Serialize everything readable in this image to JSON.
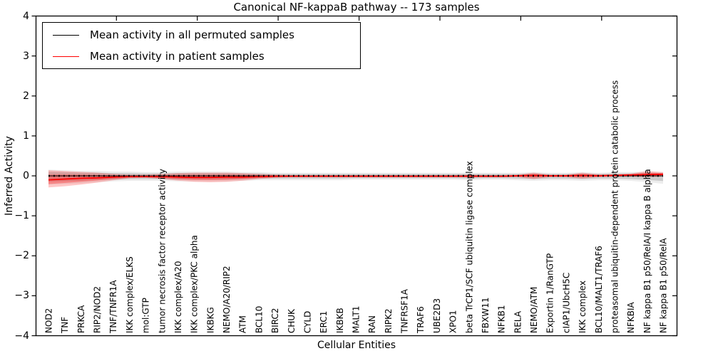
{
  "chart_data": {
    "type": "line",
    "title": "Canonical NF-kappaB pathway -- 173 samples",
    "xlabel": "Cellular Entities",
    "ylabel": "Inferred Activity",
    "ylim": [
      -4,
      4
    ],
    "ytick_labels": [
      "4",
      "3",
      "2",
      "1",
      "0",
      "−1",
      "−2",
      "−3",
      "−4"
    ],
    "grid": false,
    "legend_position": "upper left",
    "colors": {
      "permuted_line": "#000000",
      "patient_line": "#ff0000",
      "permuted_band": "#999999",
      "patient_band": "#ff0000"
    },
    "categories": [
      "NOD2",
      "TNF",
      "PRKCA",
      "RIP2/NOD2",
      "TNF/TNFR1A",
      "IKK complex/ELKS",
      "mol:GTP",
      "tumor necrosis factor receptor activity",
      "IKK complex/A20",
      "IKK complex/PKC alpha",
      "IKBKG",
      "NEMO/A20/RIP2",
      "ATM",
      "BCL10",
      "BIRC2",
      "CHUK",
      "CYLD",
      "ERC1",
      "IKBKB",
      "MALT1",
      "RAN",
      "RIPK2",
      "TNFRSF1A",
      "TRAF6",
      "UBE2D3",
      "XPO1",
      "beta TrCP1/SCF ubiquitin ligase complex",
      "FBXW11",
      "NFKB1",
      "RELA",
      "NEMO/ATM",
      "Exportin 1/RanGTP",
      "cIAP1/UbcH5C",
      "IKK complex",
      "BCL10/MALT1/TRAF6",
      "proteasomal ubiquitin-dependent protein catabolic process",
      "NFKBIA",
      "NF kappa B1 p50/RelA/I kappa B alpha",
      "NF kappa B1 p50/RelA"
    ],
    "series": [
      {
        "name": "Mean activity in all permuted samples",
        "color": "#000000",
        "values": [
          0,
          0,
          0,
          0,
          0,
          0,
          0,
          0,
          0,
          0,
          0,
          0,
          0,
          0,
          0,
          0,
          0,
          0,
          0,
          0,
          0,
          0,
          0,
          0,
          0,
          0,
          0,
          0,
          0,
          0,
          0,
          0,
          0,
          0,
          0,
          0,
          0,
          0,
          0
        ]
      },
      {
        "name": "Mean activity in patient samples",
        "color": "#ff0000",
        "values": [
          -0.1,
          -0.08,
          -0.06,
          -0.05,
          -0.03,
          -0.02,
          -0.02,
          -0.02,
          -0.03,
          -0.04,
          -0.04,
          -0.03,
          -0.03,
          -0.02,
          -0.01,
          -0.01,
          -0.01,
          -0.01,
          -0.01,
          -0.01,
          -0.01,
          -0.01,
          -0.01,
          -0.01,
          -0.01,
          -0.01,
          -0.01,
          -0.01,
          -0.01,
          0.0,
          0.01,
          0.0,
          0.0,
          0.01,
          0.0,
          0.01,
          0.02,
          0.03,
          0.04
        ]
      }
    ],
    "bands": [
      {
        "name": "permuted samples spread",
        "color": "#000000",
        "opacity": 0.14,
        "upper": [
          0.1,
          0.09,
          0.08,
          0.08,
          0.07,
          0.07,
          0.06,
          0.06,
          0.07,
          0.07,
          0.07,
          0.07,
          0.06,
          0.06,
          0.05,
          0.05,
          0.05,
          0.05,
          0.05,
          0.05,
          0.05,
          0.05,
          0.05,
          0.05,
          0.05,
          0.05,
          0.05,
          0.05,
          0.05,
          0.05,
          0.06,
          0.05,
          0.05,
          0.06,
          0.05,
          0.06,
          0.06,
          0.07,
          0.06
        ],
        "lower": [
          -0.14,
          -0.13,
          -0.12,
          -0.1,
          -0.09,
          -0.08,
          -0.08,
          -0.08,
          -0.09,
          -0.09,
          -0.09,
          -0.09,
          -0.08,
          -0.07,
          -0.07,
          -0.07,
          -0.07,
          -0.07,
          -0.07,
          -0.06,
          -0.06,
          -0.06,
          -0.06,
          -0.06,
          -0.06,
          -0.06,
          -0.07,
          -0.06,
          -0.06,
          -0.07,
          -0.08,
          -0.07,
          -0.07,
          -0.08,
          -0.07,
          -0.07,
          -0.08,
          -0.1,
          -0.13
        ]
      },
      {
        "name": "patient samples spread",
        "color": "#ff0000",
        "opacity": 0.22,
        "upper": [
          0.14,
          0.12,
          0.1,
          0.08,
          0.05,
          0.03,
          0.03,
          0.05,
          0.07,
          0.08,
          0.08,
          0.08,
          0.07,
          0.05,
          0.03,
          0.02,
          0.02,
          0.02,
          0.02,
          0.02,
          0.02,
          0.02,
          0.02,
          0.02,
          0.02,
          0.02,
          0.03,
          0.02,
          0.02,
          0.03,
          0.08,
          0.03,
          0.03,
          0.08,
          0.04,
          0.04,
          0.06,
          0.12,
          0.09
        ],
        "lower": [
          -0.29,
          -0.26,
          -0.22,
          -0.17,
          -0.11,
          -0.06,
          -0.05,
          -0.08,
          -0.12,
          -0.15,
          -0.16,
          -0.15,
          -0.12,
          -0.08,
          -0.05,
          -0.03,
          -0.03,
          -0.03,
          -0.03,
          -0.03,
          -0.03,
          -0.03,
          -0.03,
          -0.03,
          -0.03,
          -0.03,
          -0.03,
          -0.03,
          -0.03,
          -0.03,
          -0.08,
          -0.03,
          -0.03,
          -0.07,
          -0.03,
          -0.02,
          -0.02,
          -0.03,
          -0.02
        ]
      }
    ]
  }
}
